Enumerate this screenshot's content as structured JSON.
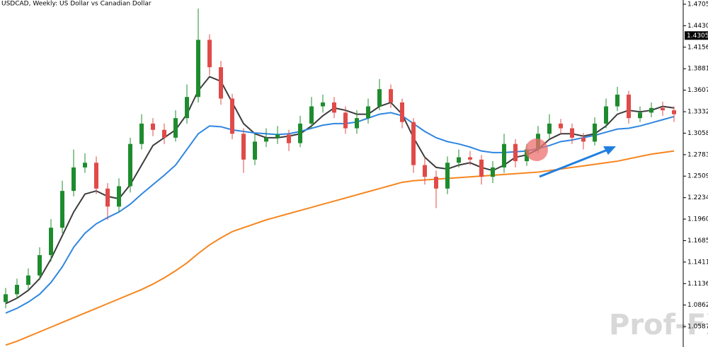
{
  "chart_data": {
    "type": "candlestick",
    "title": "USDCAD, Weekly:  US Dollar vs Canadian Dollar",
    "open": [
      1.09,
      1.1,
      1.112,
      1.124,
      1.15,
      1.185,
      1.232,
      1.262,
      1.268,
      1.235,
      1.212,
      1.238,
      1.292,
      1.318,
      1.31,
      1.3,
      1.325,
      1.352,
      1.425,
      1.39,
      1.35,
      1.305,
      1.272,
      1.295,
      1.3,
      1.304,
      1.293,
      1.318,
      1.34,
      1.345,
      1.332,
      1.312,
      1.325,
      1.34,
      1.362,
      1.345,
      1.32,
      1.265,
      1.25,
      1.235,
      1.268,
      1.275,
      1.272,
      1.25,
      1.262,
      1.292,
      1.27,
      1.285,
      1.305,
      1.318,
      1.312,
      1.3,
      1.295,
      1.318,
      1.34,
      1.355,
      1.325,
      1.332,
      1.338,
      1.335
    ],
    "high": [
      1.108,
      1.12,
      1.133,
      1.16,
      1.196,
      1.245,
      1.285,
      1.28,
      1.276,
      1.242,
      1.248,
      1.3,
      1.33,
      1.325,
      1.318,
      1.335,
      1.368,
      1.465,
      1.432,
      1.398,
      1.356,
      1.312,
      1.305,
      1.312,
      1.315,
      1.31,
      1.328,
      1.352,
      1.355,
      1.352,
      1.34,
      1.335,
      1.35,
      1.375,
      1.368,
      1.35,
      1.325,
      1.275,
      1.258,
      1.276,
      1.285,
      1.283,
      1.278,
      1.27,
      1.305,
      1.298,
      1.292,
      1.315,
      1.33,
      1.324,
      1.318,
      1.306,
      1.326,
      1.35,
      1.365,
      1.36,
      1.34,
      1.345,
      1.346,
      1.34
    ],
    "low": [
      1.082,
      1.094,
      1.105,
      1.118,
      1.142,
      1.178,
      1.225,
      1.255,
      1.228,
      1.195,
      1.205,
      1.23,
      1.285,
      1.302,
      1.292,
      1.295,
      1.318,
      1.345,
      1.38,
      1.342,
      1.298,
      1.255,
      1.265,
      1.288,
      1.292,
      1.283,
      1.288,
      1.312,
      1.332,
      1.325,
      1.305,
      1.305,
      1.318,
      1.335,
      1.338,
      1.312,
      1.255,
      1.24,
      1.21,
      1.228,
      1.262,
      1.265,
      1.24,
      1.242,
      1.255,
      1.262,
      1.264,
      1.28,
      1.298,
      1.305,
      1.292,
      1.285,
      1.29,
      1.312,
      1.334,
      1.318,
      1.32,
      1.326,
      1.328,
      1.32
    ],
    "close": [
      1.1,
      1.112,
      1.124,
      1.15,
      1.185,
      1.232,
      1.262,
      1.268,
      1.235,
      1.212,
      1.238,
      1.292,
      1.318,
      1.31,
      1.3,
      1.325,
      1.352,
      1.425,
      1.39,
      1.35,
      1.305,
      1.272,
      1.295,
      1.3,
      1.304,
      1.293,
      1.318,
      1.34,
      1.345,
      1.332,
      1.312,
      1.325,
      1.34,
      1.362,
      1.345,
      1.32,
      1.265,
      1.25,
      1.235,
      1.268,
      1.275,
      1.272,
      1.25,
      1.262,
      1.292,
      1.27,
      1.285,
      1.305,
      1.318,
      1.312,
      1.3,
      1.295,
      1.318,
      1.34,
      1.355,
      1.325,
      1.332,
      1.338,
      1.335,
      1.33
    ],
    "up_color": "#1e8c2e",
    "down_color": "#e04a48",
    "lines": [
      {
        "color": "#3c3c3c",
        "values": [
          1.088,
          1.095,
          1.105,
          1.12,
          1.145,
          1.175,
          1.205,
          1.228,
          1.232,
          1.225,
          1.222,
          1.24,
          1.265,
          1.29,
          1.3,
          1.31,
          1.33,
          1.36,
          1.378,
          1.372,
          1.345,
          1.318,
          1.305,
          1.3,
          1.3,
          1.302,
          1.305,
          1.315,
          1.328,
          1.338,
          1.335,
          1.33,
          1.33,
          1.34,
          1.345,
          1.33,
          1.3,
          1.275,
          1.262,
          1.26,
          1.265,
          1.268,
          1.262,
          1.258,
          1.265,
          1.275,
          1.278,
          1.285,
          1.298,
          1.305,
          1.305,
          1.302,
          1.305,
          1.315,
          1.33,
          1.335,
          1.333,
          1.335,
          1.34,
          1.338
        ]
      },
      {
        "color": "#2f86e0",
        "values": [
          1.076,
          1.082,
          1.09,
          1.1,
          1.115,
          1.135,
          1.16,
          1.178,
          1.19,
          1.198,
          1.205,
          1.215,
          1.228,
          1.24,
          1.252,
          1.265,
          1.285,
          1.305,
          1.315,
          1.314,
          1.31,
          1.308,
          1.306,
          1.305,
          1.304,
          1.305,
          1.308,
          1.312,
          1.316,
          1.318,
          1.318,
          1.32,
          1.325,
          1.33,
          1.332,
          1.328,
          1.318,
          1.308,
          1.3,
          1.295,
          1.292,
          1.288,
          1.283,
          1.281,
          1.281,
          1.282,
          1.283,
          1.286,
          1.29,
          1.295,
          1.297,
          1.3,
          1.303,
          1.307,
          1.311,
          1.312,
          1.315,
          1.319,
          1.323,
          1.327
        ]
      },
      {
        "color": "#f5861f",
        "values": [
          1.035,
          1.04,
          1.046,
          1.052,
          1.058,
          1.064,
          1.07,
          1.076,
          1.082,
          1.088,
          1.094,
          1.1,
          1.106,
          1.113,
          1.121,
          1.13,
          1.14,
          1.152,
          1.163,
          1.172,
          1.18,
          1.185,
          1.19,
          1.195,
          1.199,
          1.203,
          1.207,
          1.211,
          1.215,
          1.219,
          1.223,
          1.227,
          1.231,
          1.235,
          1.239,
          1.243,
          1.245,
          1.246,
          1.247,
          1.248,
          1.249,
          1.25,
          1.251,
          1.252,
          1.253,
          1.254,
          1.255,
          1.256,
          1.258,
          1.26,
          1.262,
          1.264,
          1.266,
          1.268,
          1.27,
          1.273,
          1.276,
          1.279,
          1.281,
          1.283
        ]
      }
    ],
    "ylim": [
      1.0326,
      1.4759
    ],
    "yticks": [
      1.4705,
      {
        "value": 1.443,
        "label": "1.4430"
      },
      1.4156,
      1.3881,
      1.3607,
      1.3332,
      1.3058,
      1.2783,
      1.2509,
      1.2234,
      {
        "value": 1.196,
        "label": "1.1960"
      },
      1.1685,
      1.1411,
      1.1136,
      1.0862,
      1.0587
    ],
    "price_label": 1.4305,
    "watermark": "Prof-FX"
  }
}
